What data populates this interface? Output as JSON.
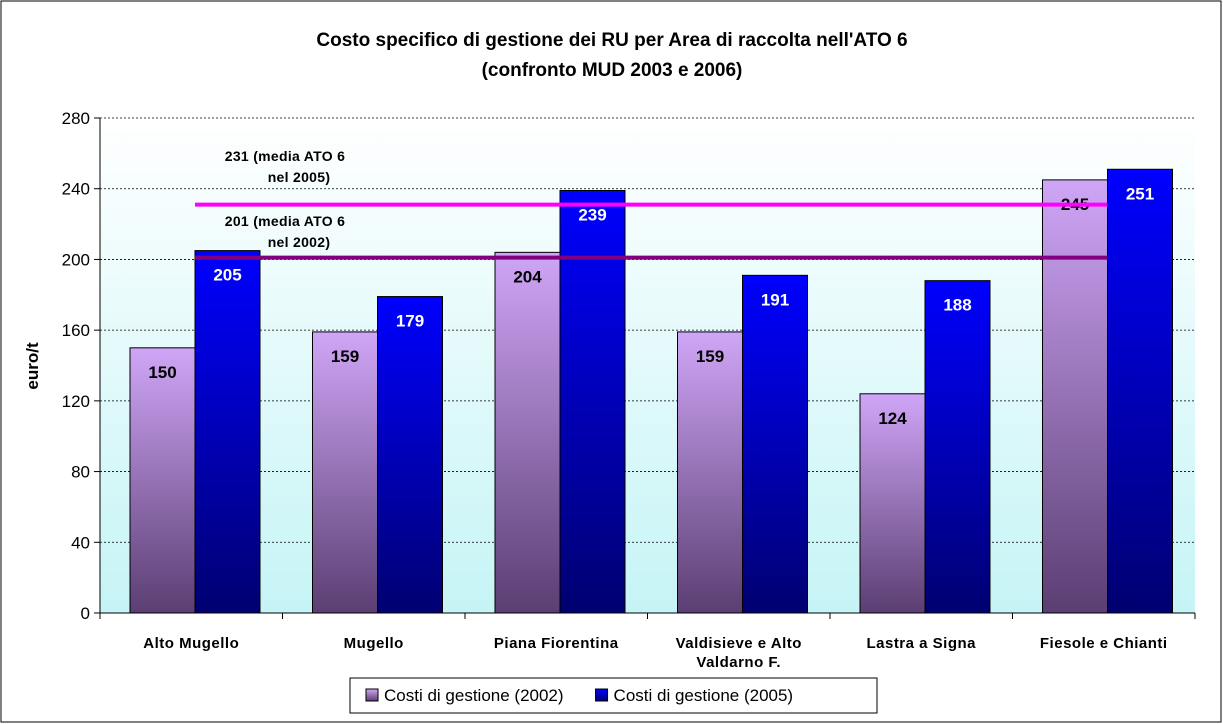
{
  "chart_data": {
    "type": "bar",
    "title": "Costo specifico di gestione dei RU per Area di raccolta nell'ATO 6",
    "subtitle": "(confronto MUD 2003 e 2006)",
    "y_label": "euro/t",
    "categories": [
      "Alto Mugello",
      "Mugello",
      "Piana Fiorentina",
      "Valdisieve e Alto Valdarno F.",
      "Lastra a Signa",
      "Fiesole e Chianti"
    ],
    "series": [
      {
        "name": "Costi di gestione (2002)",
        "color": "#c8a0f0",
        "values": [
          150,
          159,
          204,
          159,
          124,
          245
        ]
      },
      {
        "name": "Costi di gestione (2005)",
        "color": "#0000ff",
        "values": [
          205,
          179,
          239,
          191,
          188,
          251
        ]
      }
    ],
    "reference_lines": [
      {
        "value": 231,
        "color": "#ff00ff",
        "text": [
          "231 (media ATO 6",
          "nel 2005)"
        ]
      },
      {
        "value": 201,
        "color": "#800080",
        "text": [
          "201 (media ATO 6",
          "nel 2002)"
        ]
      }
    ],
    "ylim": [
      0,
      280
    ],
    "yticks": [
      0,
      40,
      80,
      120,
      160,
      200,
      240,
      280
    ],
    "grid": true,
    "legend": "bottom"
  }
}
